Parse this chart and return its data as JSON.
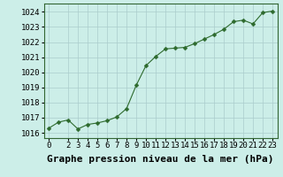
{
  "x": [
    0,
    1,
    2,
    3,
    4,
    5,
    6,
    7,
    8,
    9,
    10,
    11,
    12,
    13,
    14,
    15,
    16,
    17,
    18,
    19,
    20,
    21,
    22,
    23
  ],
  "y": [
    1016.3,
    1016.7,
    1016.85,
    1016.25,
    1016.55,
    1016.65,
    1016.8,
    1017.05,
    1017.6,
    1019.15,
    1020.45,
    1021.05,
    1021.55,
    1021.6,
    1021.65,
    1021.9,
    1022.2,
    1022.5,
    1022.85,
    1023.35,
    1023.45,
    1023.2,
    1023.95,
    1024.05
  ],
  "line_color": "#2d6a2d",
  "marker": "D",
  "marker_size": 2.5,
  "bg_color": "#cceee8",
  "grid_color": "#aacccc",
  "xlabel": "Graphe pression niveau de la mer (hPa)",
  "xlabel_fontsize": 8,
  "ylabel_ticks": [
    1016,
    1017,
    1018,
    1019,
    1020,
    1021,
    1022,
    1023,
    1024
  ],
  "ylim": [
    1015.65,
    1024.55
  ],
  "xlim": [
    -0.5,
    23.5
  ],
  "xticks": [
    0,
    2,
    3,
    4,
    5,
    6,
    7,
    8,
    9,
    10,
    11,
    12,
    13,
    14,
    15,
    16,
    17,
    18,
    19,
    20,
    21,
    22,
    23
  ],
  "tick_fontsize": 6.5,
  "spine_color": "#336633"
}
